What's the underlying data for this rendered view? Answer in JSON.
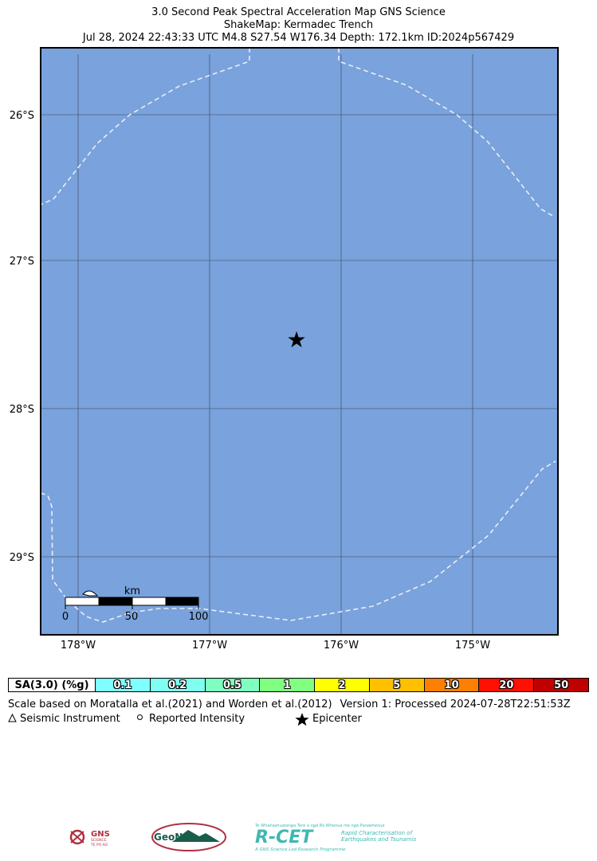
{
  "title": {
    "line1": "3.0 Second Peak Spectral Acceleration Map GNS Science",
    "line2": "ShakeMap: Kermadec Trench",
    "line3": "Jul 28, 2024 22:43:33 UTC M4.8 S27.54 W176.34 Depth: 172.1km ID:2024p567429"
  },
  "map": {
    "ocean_color": "#7aa2dc",
    "lat_labels": [
      "26°S",
      "27°S",
      "28°S",
      "29°S"
    ],
    "lon_labels": [
      "178°W",
      "177°W",
      "176°W",
      "175°W"
    ],
    "epicenter_symbol": "★",
    "scalebar": {
      "unit": "km",
      "ticks": [
        "0",
        "50",
        "100"
      ]
    }
  },
  "legend": {
    "label": "SA(3.0) (%g)",
    "bins": [
      {
        "value": "0.1",
        "color": "#7fffff"
      },
      {
        "value": "0.2",
        "color": "#7ffff0"
      },
      {
        "value": "0.5",
        "color": "#7fffbf"
      },
      {
        "value": "1",
        "color": "#80ff80"
      },
      {
        "value": "2",
        "color": "#ffff00"
      },
      {
        "value": "5",
        "color": "#ffc000"
      },
      {
        "value": "10",
        "color": "#ff8000"
      },
      {
        "value": "20",
        "color": "#ff1000"
      },
      {
        "value": "50",
        "color": "#c00000"
      }
    ]
  },
  "notes": {
    "scale": "Scale based on Moratalla et al.(2021) and Worden et al.(2012)",
    "version": "Version 1: Processed 2024-07-28T22:51:53Z"
  },
  "symbols": {
    "instrument_icon": "triangle-icon",
    "instrument_label": "Seismic Instrument",
    "intensity_icon": "circle-icon",
    "intensity_label": "Reported Intensity",
    "epicenter_icon": "star-icon",
    "epicenter_label": "Epicenter"
  },
  "logos": {
    "gns": "GNS",
    "gns_sub1": "SCIENCE",
    "gns_sub2": "TE PŪ AO",
    "geonet": "GeoNet",
    "rcet_top": "Te Whakaahuatanga Tere a ngā Rū Whenua me ngā Parawhenua",
    "rcet": "R-CET",
    "rcet_sub1": "Rapid Characterisation of",
    "rcet_sub2": "Earthquakes and Tsunamis",
    "rcet_bottom": "A GNS Science Led Research Programme"
  }
}
